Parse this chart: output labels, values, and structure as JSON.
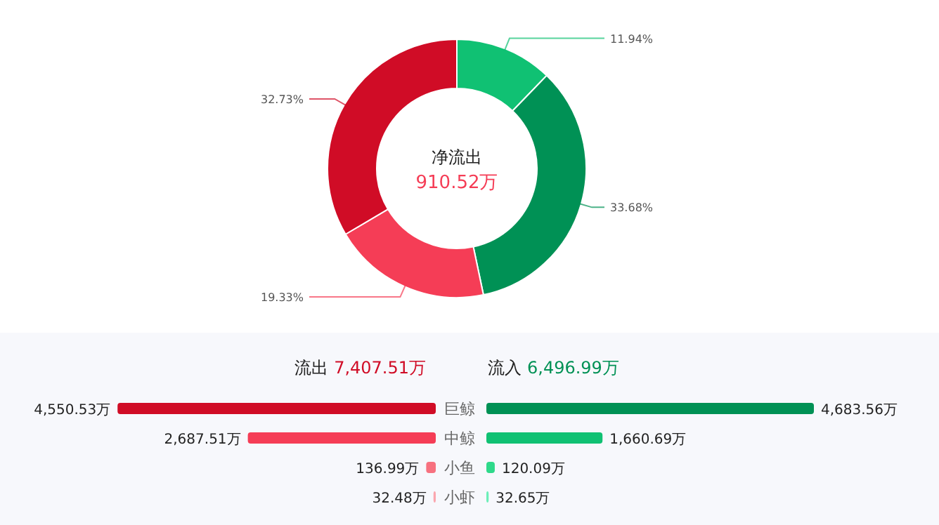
{
  "chart_data": [
    {
      "type": "donut",
      "categories": [
        null,
        null,
        null,
        null
      ],
      "values": [
        11.94,
        33.68,
        19.33,
        32.73
      ],
      "colors": [
        "#10c173",
        "#009155",
        "#f53d56",
        "#d00c26"
      ],
      "value_labels": [
        "11.94%",
        "33.68%",
        "19.33%",
        "32.73%"
      ],
      "annotations": [
        "净流出",
        "910.52万"
      ]
    },
    {
      "type": "bar",
      "orientation": "horizontal",
      "categories": [
        "巨鲸",
        "中鲸",
        "小鱼",
        "小虾"
      ],
      "series": [
        {
          "name": "流出",
          "colors": [
            "#d00c26",
            "#f53d56",
            "#f7717f",
            "#fba6ae"
          ],
          "values": [
            4550.53,
            2687.51,
            136.99,
            32.48
          ],
          "value_labels": [
            "4,550.53万",
            "2,687.51万",
            "136.99万",
            "32.48万"
          ]
        }
      ],
      "annotations": [
        "7,407.51万"
      ]
    },
    {
      "type": "bar",
      "orientation": "horizontal",
      "categories": [
        null,
        null,
        null,
        null
      ],
      "series": [
        {
          "name": "流入",
          "colors": [
            "#009155",
            "#10c173",
            "#2ed98a",
            "#6cefb9"
          ],
          "values": [
            4683.56,
            1660.69,
            120.09,
            32.65
          ],
          "value_labels": [
            "4,683.56万",
            "1,660.69万",
            "120.09万",
            "32.65万"
          ]
        }
      ],
      "annotations": [
        "6,496.99万"
      ]
    }
  ]
}
